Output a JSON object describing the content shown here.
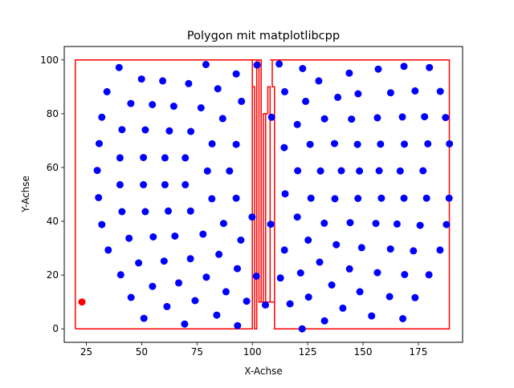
{
  "chart_data": {
    "type": "scatter",
    "title": "Polygon mit matplotlibcpp",
    "xlabel": "X-Achse",
    "ylabel": "Y-Achse",
    "xlim": [
      15,
      195
    ],
    "ylim": [
      -5,
      105
    ],
    "x_ticks": [
      25,
      50,
      75,
      100,
      125,
      150,
      175
    ],
    "y_ticks": [
      0,
      20,
      40,
      60,
      80,
      100
    ],
    "grid": false,
    "polygon": {
      "color": "#ff0000",
      "x": [
        20,
        20,
        100,
        100,
        101,
        101,
        102,
        102,
        104,
        104,
        106,
        106,
        107,
        107,
        108,
        108,
        110,
        110,
        109,
        109,
        108,
        108,
        189,
        189,
        110,
        110,
        106,
        106,
        105,
        105,
        103,
        103,
        100,
        100,
        20
      ],
      "y": [
        0,
        100,
        100,
        90,
        90,
        0,
        0,
        100,
        100,
        10,
        10,
        80,
        80,
        90,
        90,
        10,
        10,
        90,
        90,
        100,
        100,
        100,
        100,
        0,
        0,
        10,
        10,
        80,
        80,
        10,
        10,
        100,
        100,
        0,
        0
      ]
    },
    "red_point": {
      "x": 23,
      "y": 10,
      "color": "#ff0000"
    },
    "point_color": "#0000ff",
    "points": [
      [
        39.8,
        97.2
      ],
      [
        49.9,
        92.9
      ],
      [
        59.5,
        92.2
      ],
      [
        71.2,
        91.2
      ],
      [
        79.0,
        98.3
      ],
      [
        84.4,
        89.3
      ],
      [
        92.7,
        94.8
      ],
      [
        102.1,
        98.1
      ],
      [
        34.3,
        88.2
      ],
      [
        45.1,
        83.8
      ],
      [
        54.8,
        83.4
      ],
      [
        64.5,
        82.8
      ],
      [
        76.8,
        82.2
      ],
      [
        86.6,
        78.2
      ],
      [
        95.1,
        84.6
      ],
      [
        32.0,
        78.7
      ],
      [
        41.1,
        74.1
      ],
      [
        51.6,
        74.0
      ],
      [
        62.5,
        73.6
      ],
      [
        72.2,
        73.4
      ],
      [
        81.8,
        68.8
      ],
      [
        92.7,
        68.6
      ],
      [
        30.8,
        68.9
      ],
      [
        40.2,
        63.6
      ],
      [
        50.8,
        63.7
      ],
      [
        60.5,
        63.6
      ],
      [
        69.7,
        63.6
      ],
      [
        79.7,
        58.7
      ],
      [
        89.7,
        58.7
      ],
      [
        29.9,
        58.9
      ],
      [
        40.2,
        53.6
      ],
      [
        50.8,
        53.6
      ],
      [
        60.5,
        53.6
      ],
      [
        69.7,
        53.6
      ],
      [
        81.7,
        48.4
      ],
      [
        92.7,
        48.6
      ],
      [
        30.5,
        48.8
      ],
      [
        41.1,
        43.6
      ],
      [
        51.6,
        43.6
      ],
      [
        62.0,
        43.8
      ],
      [
        72.1,
        43.8
      ],
      [
        87.0,
        39.2
      ],
      [
        99.9,
        41.6
      ],
      [
        32.0,
        38.8
      ],
      [
        44.3,
        33.7
      ],
      [
        55.2,
        34.2
      ],
      [
        65.0,
        34.5
      ],
      [
        77.7,
        35.2
      ],
      [
        94.8,
        33.0
      ],
      [
        34.9,
        29.3
      ],
      [
        48.6,
        24.5
      ],
      [
        60.1,
        25.2
      ],
      [
        72.0,
        26.1
      ],
      [
        84.9,
        27.7
      ],
      [
        93.2,
        22.4
      ],
      [
        40.5,
        20.1
      ],
      [
        54.9,
        15.8
      ],
      [
        66.7,
        17.1
      ],
      [
        79.2,
        19.2
      ],
      [
        88.1,
        13.8
      ],
      [
        45.2,
        11.7
      ],
      [
        61.4,
        8.3
      ],
      [
        74.1,
        10.5
      ],
      [
        83.9,
        5.1
      ],
      [
        97.4,
        10.3
      ],
      [
        51.0,
        3.9
      ],
      [
        69.4,
        1.8
      ],
      [
        93.3,
        1.2
      ],
      [
        101.8,
        19.6
      ],
      [
        105.9,
        8.9
      ],
      [
        108.7,
        78.7
      ],
      [
        108.3,
        38.9
      ],
      [
        112.1,
        98.5
      ],
      [
        114.6,
        88.2
      ],
      [
        122.7,
        96.8
      ],
      [
        130.0,
        92.2
      ],
      [
        143.8,
        95.1
      ],
      [
        156.9,
        96.6
      ],
      [
        168.5,
        97.6
      ],
      [
        180.0,
        97.2
      ],
      [
        124.1,
        84.6
      ],
      [
        138.6,
        86.1
      ],
      [
        147.8,
        87.4
      ],
      [
        162.5,
        87.8
      ],
      [
        173.5,
        88.5
      ],
      [
        184.9,
        88.3
      ],
      [
        120.3,
        76.0
      ],
      [
        132.6,
        78.1
      ],
      [
        144.8,
        78.0
      ],
      [
        156.5,
        78.5
      ],
      [
        167.8,
        78.8
      ],
      [
        177.8,
        78.9
      ],
      [
        187.3,
        78.6
      ],
      [
        114.4,
        67.4
      ],
      [
        126.1,
        68.6
      ],
      [
        137.1,
        68.9
      ],
      [
        147.5,
        68.6
      ],
      [
        157.9,
        68.7
      ],
      [
        168.7,
        68.7
      ],
      [
        179.3,
        68.8
      ],
      [
        189.1,
        68.8
      ],
      [
        120.5,
        58.8
      ],
      [
        130.8,
        58.7
      ],
      [
        140.2,
        58.8
      ],
      [
        148.4,
        58.7
      ],
      [
        157.3,
        58.8
      ],
      [
        166.8,
        58.7
      ],
      [
        177.1,
        58.8
      ],
      [
        114.8,
        50.2
      ],
      [
        126.5,
        48.6
      ],
      [
        137.3,
        48.4
      ],
      [
        147.7,
        48.5
      ],
      [
        158.3,
        48.6
      ],
      [
        168.5,
        48.6
      ],
      [
        178.7,
        48.6
      ],
      [
        188.9,
        48.6
      ],
      [
        120.3,
        41.6
      ],
      [
        132.5,
        39.3
      ],
      [
        144.2,
        39.5
      ],
      [
        155.8,
        39.2
      ],
      [
        165.4,
        39.0
      ],
      [
        175.8,
        38.5
      ],
      [
        187.7,
        38.8
      ],
      [
        125.2,
        33.0
      ],
      [
        137.9,
        31.3
      ],
      [
        149.4,
        30.2
      ],
      [
        162.4,
        29.7
      ],
      [
        172.8,
        29.0
      ],
      [
        184.8,
        29.3
      ],
      [
        114.5,
        29.3
      ],
      [
        130.4,
        24.8
      ],
      [
        143.9,
        22.3
      ],
      [
        156.5,
        20.9
      ],
      [
        168.8,
        20.2
      ],
      [
        179.8,
        20.1
      ],
      [
        121.8,
        20.8
      ],
      [
        135.9,
        16.3
      ],
      [
        148.6,
        13.8
      ],
      [
        112.7,
        18.9
      ],
      [
        125.4,
        11.8
      ],
      [
        140.9,
        7.7
      ],
      [
        162.0,
        12.0
      ],
      [
        173.5,
        11.6
      ],
      [
        117.0,
        9.3
      ],
      [
        132.6,
        3.0
      ],
      [
        153.9,
        4.8
      ],
      [
        168.0,
        3.8
      ],
      [
        122.5,
        0.0
      ]
    ]
  }
}
